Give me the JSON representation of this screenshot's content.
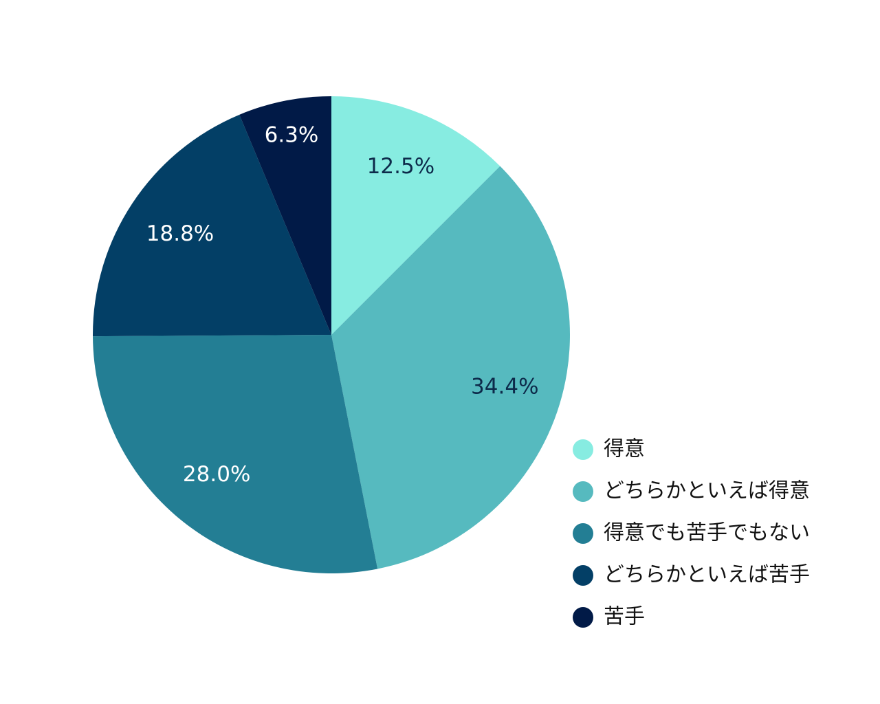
{
  "chart_data": {
    "type": "pie",
    "categories": [
      "得意",
      "どちらかといえば得意",
      "得意でも苦手でもない",
      "どちらかといえば苦手",
      "苦手"
    ],
    "values": [
      12.5,
      34.4,
      28.0,
      18.8,
      6.3
    ],
    "value_labels": [
      "12.5%",
      "34.4%",
      "28.0%",
      "18.8%",
      "6.3%"
    ],
    "colors": [
      "#87ece1",
      "#56babf",
      "#237e94",
      "#033f66",
      "#011a47"
    ],
    "legend": "lower right"
  }
}
